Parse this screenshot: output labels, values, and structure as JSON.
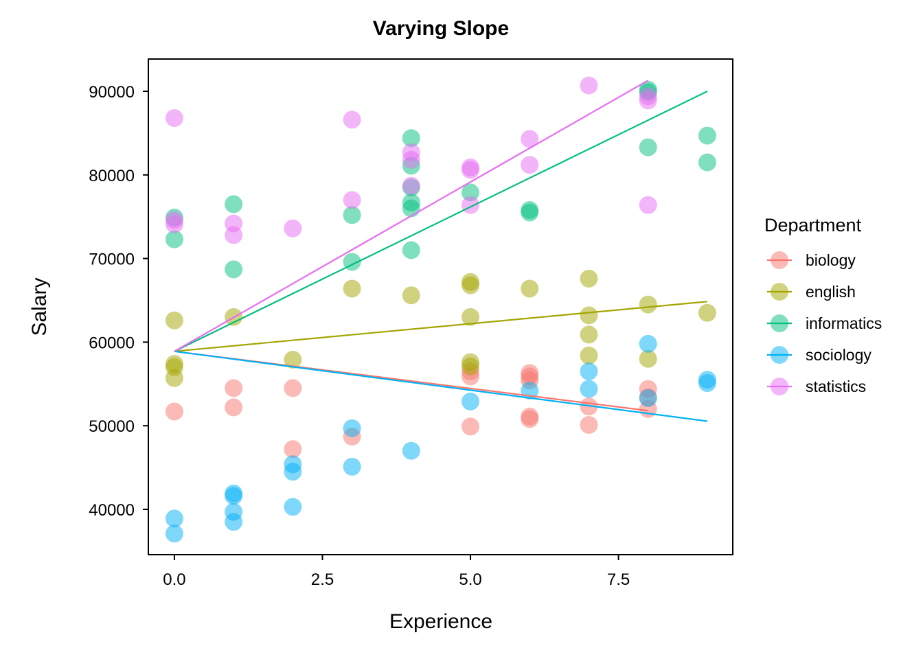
{
  "chart_data": {
    "type": "scatter",
    "title": "Varying Slope",
    "xlabel": "Experience",
    "ylabel": "Salary",
    "xlim": [
      -0.44,
      9.43
    ],
    "ylim": [
      34580,
      93860
    ],
    "xticks": [
      "0.0",
      "2.5",
      "5.0",
      "7.5"
    ],
    "xtick_values": [
      0,
      2.5,
      5,
      7.5
    ],
    "yticks": [
      "40000",
      "50000",
      "60000",
      "70000",
      "80000",
      "90000"
    ],
    "ytick_values": [
      40000,
      50000,
      60000,
      70000,
      80000,
      90000
    ],
    "grid": false,
    "legend": {
      "title": "Department",
      "placement": "right"
    },
    "series": [
      {
        "name": "biology",
        "color": "#F8766D",
        "points": [
          [
            0,
            51700
          ],
          [
            1,
            54500
          ],
          [
            1,
            52200
          ],
          [
            2,
            54500
          ],
          [
            2,
            47200
          ],
          [
            3,
            48700
          ],
          [
            5,
            56500
          ],
          [
            5,
            55900
          ],
          [
            5,
            49900
          ],
          [
            6,
            56300
          ],
          [
            6,
            55900
          ],
          [
            6,
            55400
          ],
          [
            6,
            51100
          ],
          [
            6,
            50800
          ],
          [
            7,
            52300
          ],
          [
            7,
            50100
          ],
          [
            8,
            54400
          ],
          [
            8,
            53400
          ],
          [
            8,
            52000
          ]
        ],
        "line": [
          [
            0,
            58900
          ],
          [
            8,
            51800
          ]
        ]
      },
      {
        "name": "english",
        "color": "#A3A500",
        "points": [
          [
            0,
            62600
          ],
          [
            0,
            57400
          ],
          [
            0,
            57000
          ],
          [
            0,
            55700
          ],
          [
            1,
            63000
          ],
          [
            2,
            57900
          ],
          [
            3,
            66400
          ],
          [
            4,
            65600
          ],
          [
            5,
            67200
          ],
          [
            5,
            66800
          ],
          [
            5,
            63000
          ],
          [
            5,
            57600
          ],
          [
            5,
            57100
          ],
          [
            6,
            66400
          ],
          [
            7,
            67600
          ],
          [
            7,
            63200
          ],
          [
            7,
            60900
          ],
          [
            7,
            58400
          ],
          [
            8,
            64500
          ],
          [
            8,
            58000
          ],
          [
            9,
            63500
          ]
        ],
        "line": [
          [
            0,
            58900
          ],
          [
            9,
            64850
          ]
        ]
      },
      {
        "name": "informatics",
        "color": "#00BF7D",
        "points": [
          [
            0,
            74900
          ],
          [
            0,
            72300
          ],
          [
            1,
            76500
          ],
          [
            1,
            68700
          ],
          [
            3,
            75200
          ],
          [
            3,
            69600
          ],
          [
            4,
            84400
          ],
          [
            4,
            81100
          ],
          [
            4,
            78500
          ],
          [
            4,
            76700
          ],
          [
            4,
            76000
          ],
          [
            4,
            71000
          ],
          [
            5,
            77900
          ],
          [
            6,
            75800
          ],
          [
            6,
            75500
          ],
          [
            8,
            90200
          ],
          [
            8,
            89900
          ],
          [
            8,
            83300
          ],
          [
            9,
            84700
          ],
          [
            9,
            81500
          ]
        ],
        "line": [
          [
            0,
            58900
          ],
          [
            9,
            90000
          ]
        ]
      },
      {
        "name": "sociology",
        "color": "#00B0F6",
        "points": [
          [
            0,
            38900
          ],
          [
            0,
            37100
          ],
          [
            1,
            41900
          ],
          [
            1,
            41600
          ],
          [
            1,
            39700
          ],
          [
            1,
            38500
          ],
          [
            2,
            45400
          ],
          [
            2,
            44500
          ],
          [
            2,
            40300
          ],
          [
            3,
            49700
          ],
          [
            3,
            45100
          ],
          [
            4,
            47000
          ],
          [
            5,
            52900
          ],
          [
            6,
            54200
          ],
          [
            7,
            56500
          ],
          [
            7,
            54400
          ],
          [
            8,
            59800
          ],
          [
            8,
            53300
          ],
          [
            9,
            55500
          ],
          [
            9,
            55100
          ]
        ],
        "line": [
          [
            0,
            58900
          ],
          [
            9,
            50540
          ]
        ]
      },
      {
        "name": "statistics",
        "color": "#E76BF3",
        "points": [
          [
            0,
            86800
          ],
          [
            0,
            74600
          ],
          [
            0,
            74100
          ],
          [
            1,
            74200
          ],
          [
            1,
            72800
          ],
          [
            2,
            73600
          ],
          [
            3,
            86600
          ],
          [
            3,
            77000
          ],
          [
            4,
            82700
          ],
          [
            4,
            81800
          ],
          [
            4,
            78700
          ],
          [
            5,
            80900
          ],
          [
            5,
            80600
          ],
          [
            5,
            76400
          ],
          [
            6,
            84300
          ],
          [
            6,
            81200
          ],
          [
            7,
            90700
          ],
          [
            8,
            89400
          ],
          [
            8,
            88900
          ],
          [
            8,
            76400
          ]
        ],
        "line": [
          [
            0,
            58900
          ],
          [
            8,
            91300
          ]
        ]
      }
    ]
  }
}
